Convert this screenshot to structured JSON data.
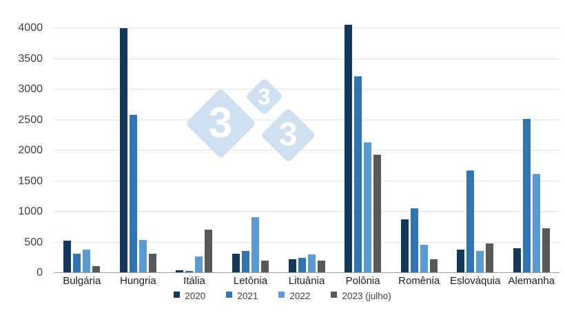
{
  "chart_data": {
    "type": "bar",
    "title": "",
    "xlabel": "",
    "ylabel": "",
    "ylim": [
      0,
      4000
    ],
    "ytick_step": 500,
    "yticks": [
      0,
      500,
      1000,
      1500,
      2000,
      2500,
      3000,
      3500,
      4000
    ],
    "grid": "horizontal",
    "legend_position": "bottom-center",
    "categories": [
      "Bulgária",
      "Hungria",
      "Itália",
      "Letônia",
      "Lituânia",
      "Polônia",
      "Romênia",
      "Eslováquia",
      "Alemanha"
    ],
    "series": [
      {
        "name": "2020",
        "color": "#12395d",
        "values": [
          530,
          4000,
          50,
          320,
          230,
          4060,
          880,
          380,
          410
        ]
      },
      {
        "name": "2021",
        "color": "#2e75b6",
        "values": [
          320,
          2580,
          30,
          360,
          250,
          3210,
          1060,
          1670,
          2520
        ]
      },
      {
        "name": "2022",
        "color": "#5b9bd5",
        "values": [
          380,
          540,
          270,
          910,
          300,
          2140,
          460,
          360,
          1620
        ]
      },
      {
        "name": "2023 (julho)",
        "color": "#595959",
        "values": [
          110,
          320,
          710,
          200,
          200,
          1930,
          220,
          480,
          730
        ]
      }
    ]
  },
  "watermark": {
    "text": "3",
    "color": "#cfe0f1",
    "digit_color": "#ffffff"
  },
  "axis": {
    "tick_color": "#3f3f3f",
    "category_color": "#1c1c1c",
    "gridline_color": "#e4e4e4",
    "baseline_color": "#a0a0a0"
  }
}
